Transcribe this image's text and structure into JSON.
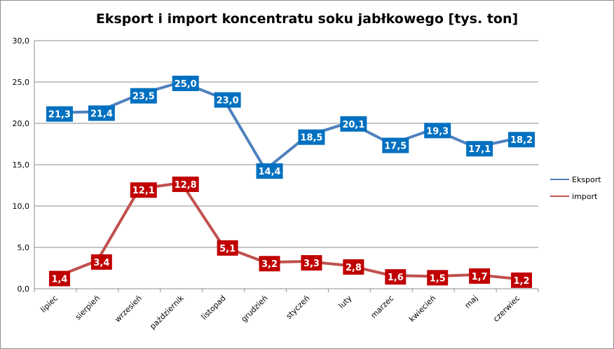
{
  "chart_data": {
    "type": "line",
    "title": "Eksport i import koncentratu soku jabłkowego [tys. ton]",
    "xlabel": "",
    "ylabel": "",
    "ylim": [
      0,
      30
    ],
    "yticks": [
      "0,0",
      "5,0",
      "10,0",
      "15,0",
      "20,0",
      "25,0",
      "30,0"
    ],
    "grid": true,
    "legend_position": "right",
    "categories": [
      "lipiec",
      "sierpień",
      "wrzesień",
      "październik",
      "listopad",
      "grudzień",
      "styczeń",
      "luty",
      "marzec",
      "kwiecień",
      "maj",
      "czerwiec"
    ],
    "series": [
      {
        "name": "Eksport",
        "color": "#4f81bd",
        "label_bg": "#0070c0",
        "values": [
          21.3,
          21.4,
          23.5,
          25.0,
          23.0,
          14.4,
          18.5,
          20.1,
          17.5,
          19.3,
          17.1,
          18.2
        ],
        "labels": [
          "21,3",
          "21,4",
          "23,5",
          "25,0",
          "23,0",
          "14,4",
          "18,5",
          "20,1",
          "17,5",
          "19,3",
          "17,1",
          "18,2"
        ]
      },
      {
        "name": "import",
        "color": "#c0504d",
        "label_bg": "#c00000",
        "values": [
          1.4,
          3.4,
          12.1,
          12.8,
          5.1,
          3.2,
          3.3,
          2.8,
          1.6,
          1.5,
          1.7,
          1.2
        ],
        "labels": [
          "1,4",
          "3,4",
          "12,1",
          "12,8",
          "5,1",
          "3,2",
          "3,3",
          "2,8",
          "1,6",
          "1,5",
          "1,7",
          "1,2"
        ]
      }
    ]
  }
}
